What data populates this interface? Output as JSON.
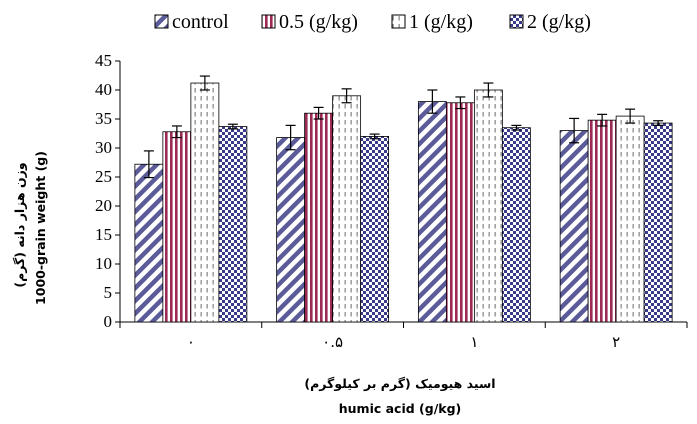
{
  "chart_data": {
    "type": "bar",
    "title": "",
    "xlabel_fa": "اسید هیومیک (گرم بر کیلوگرم)",
    "xlabel": "humic acid (g/kg)",
    "ylabel_fa": "وزن هزار دانه (گرم)",
    "ylabel": "1000-grain weight (g)",
    "ylim": [
      0,
      45
    ],
    "yticks": [
      0,
      5,
      10,
      15,
      20,
      25,
      30,
      35,
      40,
      45
    ],
    "categories": [
      "۰",
      "۰.۵",
      "۱",
      "۲"
    ],
    "legend_position": "top",
    "grid": false,
    "series": [
      {
        "name": "control",
        "values": [
          27.2,
          31.8,
          38.0,
          33.0
        ],
        "errors": [
          2.3,
          2.1,
          2.0,
          2.1
        ],
        "pattern": "diagonal-stripes",
        "color": "#5b5b99"
      },
      {
        "name": "0.5 (g/kg)",
        "values": [
          32.8,
          36.0,
          37.8,
          34.8
        ],
        "errors": [
          1.0,
          1.0,
          1.0,
          1.0
        ],
        "pattern": "vertical-stripes",
        "color": "#9b2a55"
      },
      {
        "name": "1 (g/kg)",
        "values": [
          41.2,
          39.0,
          40.0,
          35.5
        ],
        "errors": [
          1.2,
          1.2,
          1.2,
          1.2
        ],
        "pattern": "dashed-vertical",
        "color": "#999999"
      },
      {
        "name": "2 (g/kg)",
        "values": [
          33.7,
          32.0,
          33.5,
          34.3
        ],
        "errors": [
          0.4,
          0.4,
          0.4,
          0.4
        ],
        "pattern": "checkerboard",
        "color": "#3a3a8a"
      }
    ]
  }
}
